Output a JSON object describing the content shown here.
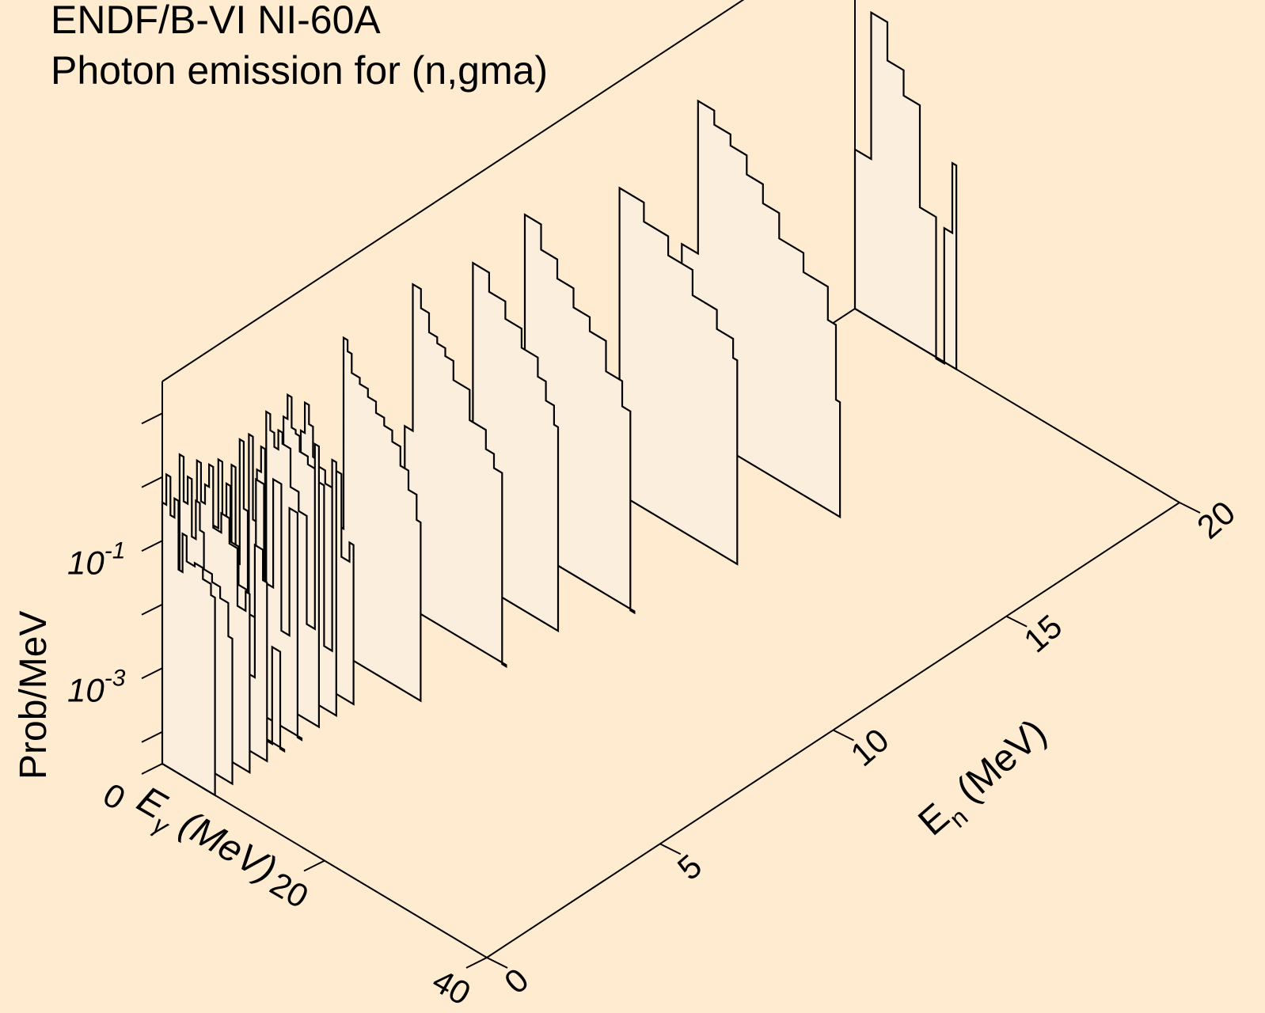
{
  "header": {
    "title": "ENDF/B-VI NI-60A",
    "subtitle": "Photon emission for (n,gma)"
  },
  "colors": {
    "background": "#ffecd0",
    "panel_fill": "#fbeedd",
    "line": "#000000"
  },
  "chart_data": {
    "type": "area",
    "subtype": "3d-waterfall-step",
    "zlabel": "Prob/MeV",
    "xlabel": "E",
    "xlabel_sub": "γ",
    "xlabel_unit": "(MeV)",
    "ylabel": "E",
    "ylabel_sub": "n",
    "ylabel_unit": "(MeV)",
    "z_scale": "log",
    "z_tick_labels": [
      {
        "base": "10",
        "exp": "-3"
      },
      {
        "base": "10",
        "exp": "-1"
      }
    ],
    "x_ticks": [
      "0",
      "20",
      "40"
    ],
    "y_ticks": [
      "0",
      "5",
      "10",
      "15",
      "20"
    ],
    "x_range": [
      0,
      40
    ],
    "y_range": [
      0,
      20
    ],
    "z_range_log10": [
      -4.5,
      1.5
    ],
    "series": [
      {
        "En": 0.0,
        "points": [
          [
            0,
            0.4
          ],
          [
            0.5,
            1.2
          ],
          [
            1,
            0.3
          ],
          [
            1.5,
            0.6
          ],
          [
            2,
            0.05
          ],
          [
            2.5,
            0.2
          ],
          [
            3,
            0.08
          ],
          [
            4,
            0.09
          ],
          [
            5,
            0.06
          ],
          [
            6,
            0.04
          ]
        ]
      },
      {
        "En": 0.5,
        "points": [
          [
            0,
            1.5
          ],
          [
            0.5,
            0.3
          ],
          [
            1,
            0.8
          ],
          [
            1.5,
            0.1
          ],
          [
            2,
            0.4
          ],
          [
            2.5,
            0.15
          ],
          [
            3,
            0.04
          ],
          [
            4,
            0.03
          ],
          [
            5,
            0.02
          ],
          [
            6,
            0.006
          ]
        ]
      },
      {
        "En": 1.0,
        "points": [
          [
            0,
            0.8
          ],
          [
            0.5,
            0.2
          ],
          [
            1,
            0.4
          ],
          [
            1.5,
            0.9
          ],
          [
            2,
            0.1
          ],
          [
            3,
            0.2
          ],
          [
            4,
            0.08
          ],
          [
            5,
            0.01
          ],
          [
            6,
            0.02
          ]
        ]
      },
      {
        "En": 1.5,
        "points": [
          [
            0,
            0.05
          ],
          [
            0.5,
            0.6
          ],
          [
            1,
            0.002
          ],
          [
            1.5,
            0.3
          ],
          [
            2,
            0.04
          ],
          [
            3,
            0.01
          ],
          [
            4,
            0.0005
          ],
          [
            5,
            0.06
          ],
          [
            6,
            0.02
          ]
        ]
      },
      {
        "En": 2.0,
        "points": [
          [
            0,
            0.3
          ],
          [
            0.5,
            0.01
          ],
          [
            1,
            0.9
          ],
          [
            1.5,
            0.08
          ],
          [
            2,
            0.002
          ],
          [
            3,
            0.3
          ],
          [
            4,
            3e-05
          ],
          [
            5,
            0.001
          ],
          [
            6,
            3e-05
          ]
        ]
      },
      {
        "En": 2.5,
        "points": [
          [
            0,
            0.6
          ],
          [
            0.5,
            0.03
          ],
          [
            1,
            0.2
          ],
          [
            1.5,
            0.5
          ],
          [
            2,
            0.004
          ],
          [
            3,
            0.2
          ],
          [
            4,
            0.001
          ],
          [
            5,
            0.1
          ],
          [
            6,
            3e-05
          ]
        ]
      },
      {
        "En": 3.0,
        "points": [
          [
            0,
            0.9
          ],
          [
            0.5,
            0.5
          ],
          [
            1,
            0.3
          ],
          [
            1.5,
            0.6
          ],
          [
            2,
            0.4
          ],
          [
            3,
            0.1
          ],
          [
            4,
            0.05
          ],
          [
            5,
            0.001
          ],
          [
            6,
            0.8
          ]
        ]
      },
      {
        "En": 3.5,
        "points": [
          [
            0,
            0.5
          ],
          [
            0.5,
            1.2
          ],
          [
            1,
            0.4
          ],
          [
            1.5,
            0.35
          ],
          [
            2,
            0.2
          ],
          [
            3,
            0.15
          ],
          [
            4,
            0.1
          ],
          [
            5,
            0.0003
          ],
          [
            6,
            0.3
          ]
        ]
      },
      {
        "En": 4.0,
        "points": [
          [
            0,
            0.2
          ],
          [
            0.5,
            0.6
          ],
          [
            1,
            0.3
          ],
          [
            1.5,
            0.1
          ],
          [
            2,
            0.08
          ],
          [
            3,
            0.05
          ],
          [
            4,
            0.1
          ],
          [
            5,
            0.005
          ],
          [
            6,
            0.01
          ]
        ]
      },
      {
        "En": 5.0,
        "points": [
          [
            0,
            0.003
          ],
          [
            1,
            3
          ],
          [
            1.5,
            2
          ],
          [
            2,
            1
          ],
          [
            3,
            0.8
          ],
          [
            4,
            0.6
          ],
          [
            5,
            0.4
          ],
          [
            6,
            0.3
          ],
          [
            7,
            0.2
          ],
          [
            8,
            0.1
          ],
          [
            9,
            0.05
          ],
          [
            10,
            0.02
          ]
        ]
      },
      {
        "En": 7.0,
        "points": [
          [
            0,
            0.02
          ],
          [
            1,
            4
          ],
          [
            2,
            2
          ],
          [
            3,
            1
          ],
          [
            4,
            0.8
          ],
          [
            5,
            0.6
          ],
          [
            6,
            0.3
          ],
          [
            8,
            0.1
          ],
          [
            10,
            0.05
          ],
          [
            11,
            0.03
          ],
          [
            12,
            3e-05
          ]
        ]
      },
      {
        "En": 8.5,
        "points": [
          [
            0,
            3e-05
          ],
          [
            2,
            3
          ],
          [
            4,
            1.5
          ],
          [
            6,
            0.8
          ],
          [
            8,
            0.4
          ],
          [
            10,
            0.2
          ],
          [
            11,
            0.1
          ],
          [
            12,
            0.05
          ]
        ]
      },
      {
        "En": 10.0,
        "points": [
          [
            0,
            0.02
          ],
          [
            2,
            5
          ],
          [
            4,
            2
          ],
          [
            6,
            1
          ],
          [
            8,
            0.5
          ],
          [
            10,
            0.3
          ],
          [
            12,
            0.1
          ],
          [
            14,
            0.04
          ],
          [
            15,
            3e-05
          ]
        ]
      },
      {
        "En": 12.5,
        "points": [
          [
            0,
            3e-05
          ],
          [
            3,
            2
          ],
          [
            6,
            1
          ],
          [
            9,
            0.5
          ],
          [
            12,
            0.2
          ],
          [
            15,
            0.1
          ],
          [
            17,
            0.05
          ]
        ]
      },
      {
        "En": 15.0,
        "points": [
          [
            0,
            0.02
          ],
          [
            2,
            5
          ],
          [
            4,
            3
          ],
          [
            6,
            2
          ],
          [
            8,
            1
          ],
          [
            10,
            0.5
          ],
          [
            12,
            0.2
          ],
          [
            15,
            0.1
          ],
          [
            18,
            0.03
          ],
          [
            19,
            0.002
          ]
        ]
      },
      {
        "En": 20.0,
        "points": [
          [
            0,
            0.01
          ],
          [
            2,
            2
          ],
          [
            4,
            0.5
          ],
          [
            6,
            0.2
          ],
          [
            8,
            0.005
          ],
          [
            10,
            3e-05
          ],
          [
            11,
            0.004
          ],
          [
            12,
            0.05
          ]
        ]
      }
    ]
  }
}
